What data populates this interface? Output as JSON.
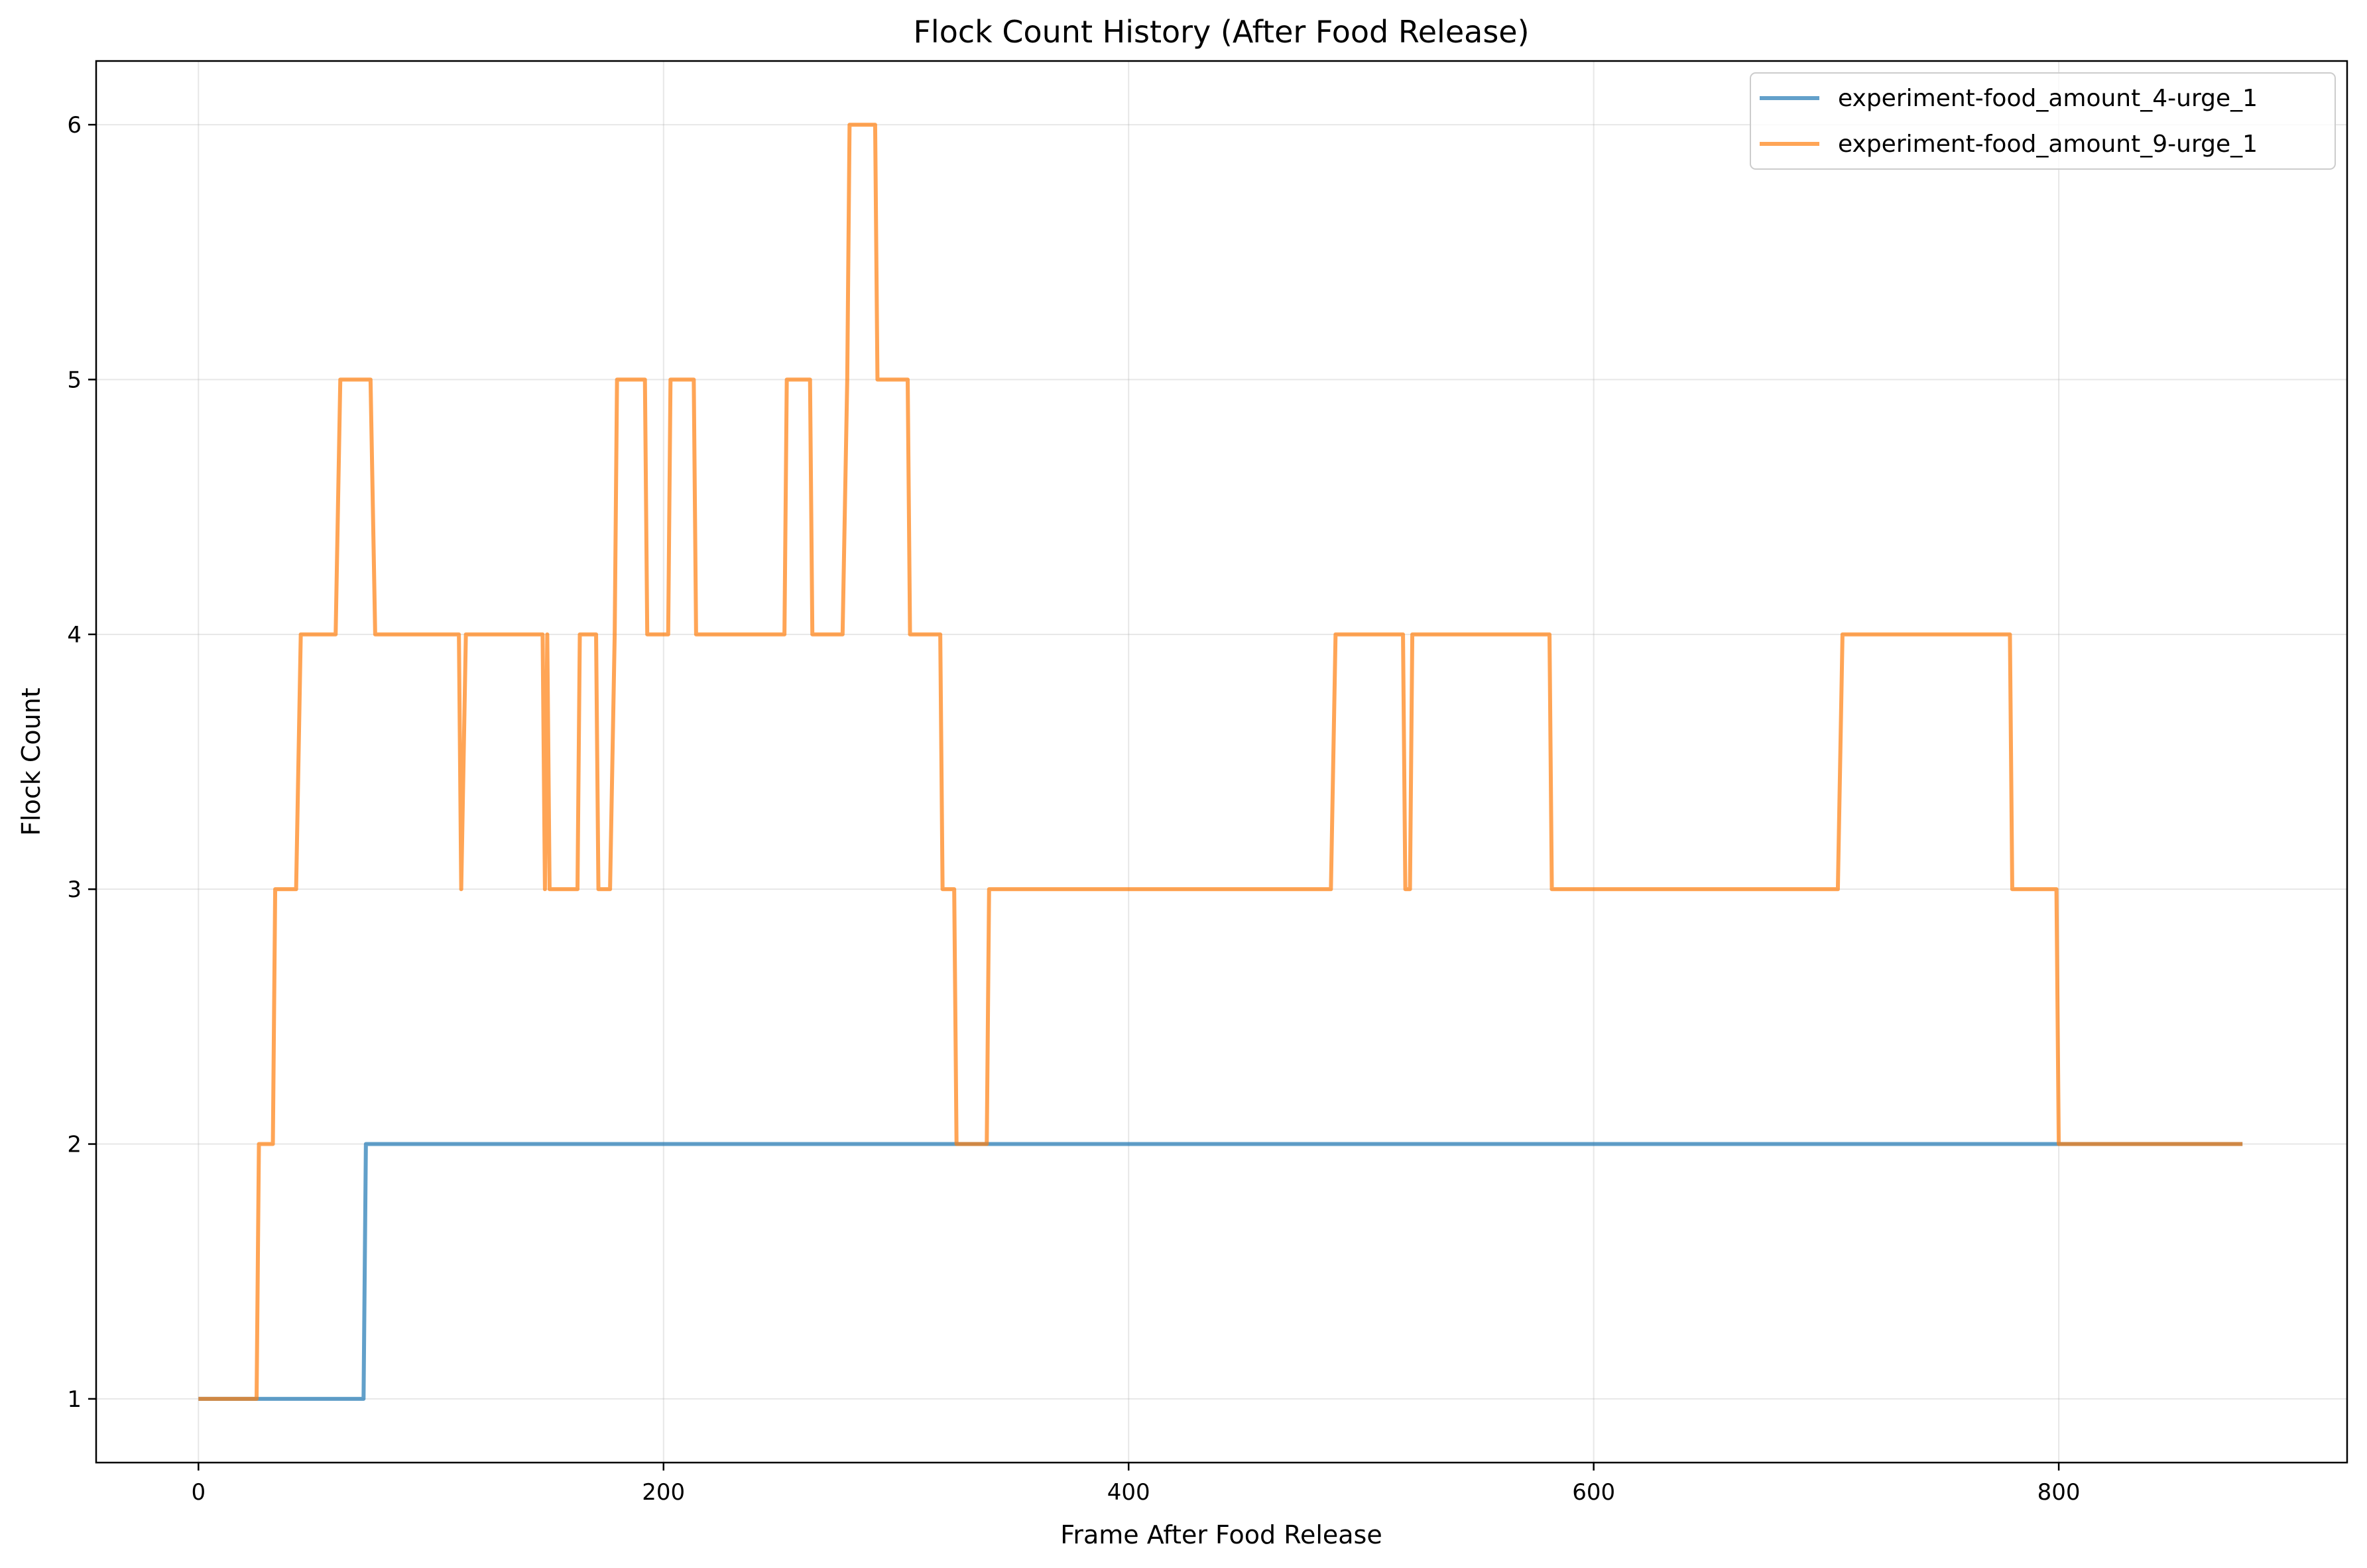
{
  "chart_data": {
    "type": "line",
    "step": true,
    "title": "Flock Count History (After Food Release)",
    "xlabel": "Frame After Food Release",
    "ylabel": "Flock Count",
    "xlim": [
      -44,
      924
    ],
    "ylim": [
      0.75,
      6.25
    ],
    "xticks": [
      0,
      200,
      400,
      600,
      800
    ],
    "yticks": [
      1,
      2,
      3,
      4,
      5,
      6
    ],
    "grid": true,
    "legend_position": "top-right",
    "series": [
      {
        "name": "experiment-food_amount_4-urge_1",
        "color": "#1f77b4",
        "points": [
          [
            0,
            1
          ],
          [
            71,
            1
          ],
          [
            72,
            2
          ],
          [
            879,
            2
          ]
        ]
      },
      {
        "name": "experiment-food_amount_9-urge_1",
        "color": "#ff7f0e",
        "points": [
          [
            0,
            1
          ],
          [
            25,
            1
          ],
          [
            26,
            2
          ],
          [
            32,
            2
          ],
          [
            33,
            3
          ],
          [
            42,
            3
          ],
          [
            44,
            4
          ],
          [
            59,
            4
          ],
          [
            61,
            5
          ],
          [
            74,
            5
          ],
          [
            76,
            4
          ],
          [
            112,
            4
          ],
          [
            113,
            3
          ],
          [
            115,
            4
          ],
          [
            148,
            4
          ],
          [
            149,
            3
          ],
          [
            150,
            4
          ],
          [
            151,
            3
          ],
          [
            163,
            3
          ],
          [
            164,
            4
          ],
          [
            171,
            4
          ],
          [
            172,
            3
          ],
          [
            177,
            3
          ],
          [
            179,
            4
          ],
          [
            180,
            5
          ],
          [
            192,
            5
          ],
          [
            193,
            4
          ],
          [
            202,
            4
          ],
          [
            203,
            5
          ],
          [
            213,
            5
          ],
          [
            214,
            4
          ],
          [
            252,
            4
          ],
          [
            253,
            5
          ],
          [
            263,
            5
          ],
          [
            264,
            4
          ],
          [
            277,
            4
          ],
          [
            279,
            5
          ],
          [
            280,
            6
          ],
          [
            291,
            6
          ],
          [
            292,
            5
          ],
          [
            305,
            5
          ],
          [
            306,
            4
          ],
          [
            319,
            4
          ],
          [
            320,
            3
          ],
          [
            325,
            3
          ],
          [
            326,
            2
          ],
          [
            339,
            2
          ],
          [
            340,
            3
          ],
          [
            487,
            3
          ],
          [
            489,
            4
          ],
          [
            518,
            4
          ],
          [
            519,
            3
          ],
          [
            521,
            3
          ],
          [
            522,
            4
          ],
          [
            581,
            4
          ],
          [
            582,
            3
          ],
          [
            705,
            3
          ],
          [
            707,
            4
          ],
          [
            779,
            4
          ],
          [
            780,
            3
          ],
          [
            799,
            3
          ],
          [
            800,
            2
          ],
          [
            879,
            2
          ]
        ]
      }
    ]
  }
}
